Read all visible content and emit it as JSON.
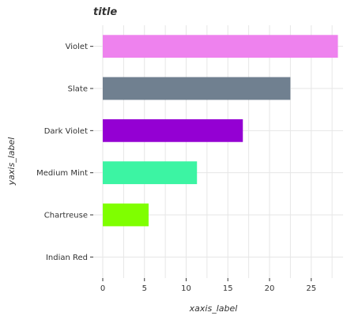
{
  "chart_data": {
    "type": "bar",
    "orientation": "horizontal",
    "title": "title",
    "xlabel": "xaxis_label",
    "ylabel": "yaxis_label",
    "categories": [
      "Indian Red",
      "Chartreuse",
      "Medium Mint",
      "Dark Violet",
      "Slate",
      "Violet"
    ],
    "values": [
      0,
      5.5,
      11.3,
      16.8,
      22.5,
      28.2
    ],
    "colors": [
      "#cd5c5c",
      "#7fff00",
      "#3cf4a3",
      "#9400d3",
      "#708090",
      "#ee82ee"
    ],
    "xlim": [
      0,
      28.5
    ],
    "xticks": [
      0,
      5,
      10,
      15,
      20,
      25
    ],
    "grid": true,
    "legend": "none"
  }
}
